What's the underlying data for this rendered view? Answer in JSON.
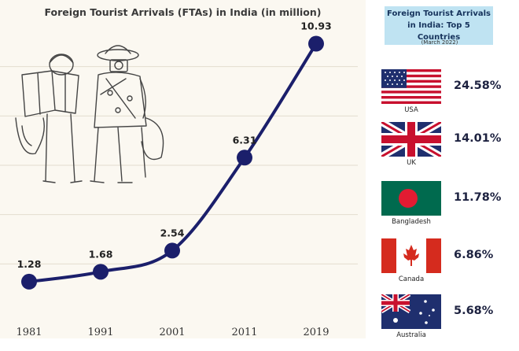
{
  "chart_data": {
    "type": "line",
    "title": "Foreign Tourist Arrivals (FTAs) in India (in million)",
    "x": [
      "1981",
      "1991",
      "2001",
      "2011",
      "2019"
    ],
    "values": [
      1.28,
      1.68,
      2.54,
      6.31,
      10.93
    ],
    "value_labels": [
      "1.28",
      "1.68",
      "2.54",
      "6.31",
      "10.93"
    ],
    "ylim": [
      0,
      12
    ],
    "grid": true,
    "line_color": "#1b1f6b"
  },
  "side_panel": {
    "title_line1": "Foreign Tourist Arrivals",
    "title_line2": "in India: Top 5 Countries",
    "subtitle": "(March 2022)",
    "countries": [
      {
        "name": "USA",
        "share": "24.58%",
        "flag": "usa-flag"
      },
      {
        "name": "UK",
        "share": "14.01%",
        "flag": "uk-flag"
      },
      {
        "name": "Bangladesh",
        "share": "11.78%",
        "flag": "bangladesh-flag"
      },
      {
        "name": "Canada",
        "share": "6.86%",
        "flag": "canada-flag"
      },
      {
        "name": "Australia",
        "share": "5.68%",
        "flag": "australia-flag"
      }
    ]
  }
}
